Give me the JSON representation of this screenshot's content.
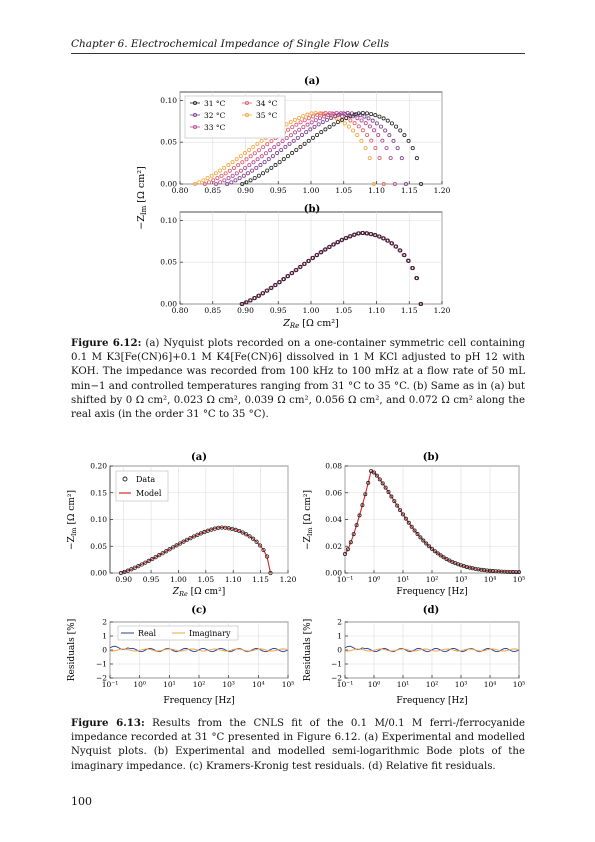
{
  "header": "Chapter 6.  Electrochemical Impedance of Single Flow Cells",
  "fig612": {
    "caption_label": "Figure 6.12:",
    "caption_text": "(a) Nyquist plots recorded on a one-container symmetric cell containing 0.1 M K3[Fe(CN)6]+0.1 M K4[Fe(CN)6] dissolved in 1 M KCl adjusted to pH 12 with KOH. The impedance was recorded from 100 kHz to 100 mHz at a flow rate of 50 mL min−1 and controlled temperatures ranging from 31 °C to 35 °C. (b) Same as in (a) but shifted by 0 Ω cm², 0.023 Ω cm², 0.039 Ω cm², 0.056 Ω cm², and 0.072 Ω cm² along the real axis (in the order 31 °C to 35 °C)."
  },
  "fig613": {
    "caption_label": "Figure 6.13:",
    "caption_text": "Results from the CNLS fit of the 0.1 M/0.1 M ferri-/ferrocyanide impedance recorded at 31 °C presented in Figure 6.12. (a) Experimental and modelled Nyquist plots. (b) Experimental and modelled semi-logarithmic Bode plots of the imaginary impedance. (c) Kramers-Kronig test residuals. (d) Relative fit residuals."
  },
  "page_number": "100",
  "chart_data": [
    {
      "panel": "6.12 (a)",
      "type": "scatter",
      "xlabel": "",
      "ylabel": "−Z_Im [Ω cm²]",
      "xlim": [
        0.8,
        1.2
      ],
      "ylim": [
        0.0,
        0.11
      ],
      "xticks": [
        "0.80",
        "0.85",
        "0.90",
        "0.95",
        "1.00",
        "1.05",
        "1.10",
        "1.15",
        "1.20"
      ],
      "yticks": [
        "0.00",
        "0.05",
        "0.10"
      ],
      "series": [
        {
          "name": "31 °C",
          "color": "#222222",
          "start": 0.895,
          "end": 1.168,
          "peak_x": 1.075,
          "peak_y": 0.085
        },
        {
          "name": "32 °C",
          "color": "#7a3b8f",
          "start": 0.872,
          "end": 1.145,
          "peak_x": 1.052,
          "peak_y": 0.085
        },
        {
          "name": "33 °C",
          "color": "#b5478f",
          "start": 0.855,
          "end": 1.128,
          "peak_x": 1.036,
          "peak_y": 0.085
        },
        {
          "name": "34 °C",
          "color": "#e05a6a",
          "start": 0.838,
          "end": 1.111,
          "peak_x": 1.019,
          "peak_y": 0.085
        },
        {
          "name": "35 °C",
          "color": "#f4a23b",
          "start": 0.823,
          "end": 1.096,
          "peak_x": 1.003,
          "peak_y": 0.085
        }
      ]
    },
    {
      "panel": "6.12 (b)",
      "type": "scatter",
      "xlabel": "Z_Re [Ω cm²]",
      "ylabel": "−Z_Im [Ω cm²]",
      "xlim": [
        0.8,
        1.2
      ],
      "ylim": [
        0.0,
        0.11
      ],
      "xticks": [
        "0.80",
        "0.85",
        "0.90",
        "0.95",
        "1.00",
        "1.05",
        "1.10",
        "1.15",
        "1.20"
      ],
      "yticks": [
        "0.00",
        "0.05",
        "0.10"
      ]
    },
    {
      "panel": "6.13 (a)",
      "type": "scatter",
      "xlabel": "Z_Re [Ω cm²]",
      "ylabel": "−Z_Im [Ω cm²]",
      "xlim": [
        0.875,
        1.2
      ],
      "ylim": [
        0.0,
        0.2
      ],
      "xticks": [
        "0.90",
        "0.95",
        "1.00",
        "1.05",
        "1.10",
        "1.15",
        "1.20"
      ],
      "yticks": [
        "0.00",
        "0.05",
        "0.10",
        "0.15",
        "0.20"
      ],
      "series": [
        {
          "name": "Data"
        },
        {
          "name": "Model"
        }
      ],
      "start": 0.895,
      "end": 1.168,
      "peak_x": 1.075,
      "peak_y": 0.085
    },
    {
      "panel": "6.13 (b)",
      "type": "line",
      "xlabel": "Frequency [Hz]",
      "ylabel": "−Z_Im [Ω cm²]",
      "xlim_log10": [
        -1,
        5
      ],
      "ylim": [
        0.0,
        0.09
      ],
      "xticks": [
        "10⁻¹",
        "10⁰",
        "10¹",
        "10²",
        "10³",
        "10⁴",
        "10⁵"
      ],
      "yticks": [
        "0.00",
        "0.02",
        "0.04",
        "0.06",
        "0.08"
      ],
      "peak_f": 0.8,
      "peak_y": 0.086,
      "low_f_y": 0.016
    },
    {
      "panel": "6.13 (c)",
      "type": "line",
      "xlabel": "Frequency [Hz]",
      "ylabel": "Residuals [%]",
      "xlim_log10": [
        -1,
        5
      ],
      "ylim": [
        -2,
        2
      ],
      "xticks": [
        "10⁻¹",
        "10⁰",
        "10¹",
        "10²",
        "10³",
        "10⁴",
        "10⁵"
      ],
      "yticks": [
        "−2",
        "−1",
        "0",
        "1",
        "2"
      ],
      "series": [
        {
          "name": "Real",
          "color": "#2a3f9e"
        },
        {
          "name": "Imaginary",
          "color": "#f4a23b"
        }
      ]
    },
    {
      "panel": "6.13 (d)",
      "type": "line",
      "xlabel": "Frequency [Hz]",
      "ylabel": "Residuals [%]",
      "xlim_log10": [
        -1,
        5
      ],
      "ylim": [
        -2,
        2
      ],
      "xticks": [
        "10⁻¹",
        "10⁰",
        "10¹",
        "10²",
        "10³",
        "10⁴",
        "10⁵"
      ],
      "yticks": [
        "−2",
        "−1",
        "0",
        "1",
        "2"
      ]
    }
  ],
  "panel_labels": {
    "a612": "(a)",
    "b612": "(b)",
    "a613": "(a)",
    "b613": "(b)",
    "c613": "(c)",
    "d613": "(d)"
  },
  "legend_data": "Data",
  "legend_model": "Model",
  "legend_real": "Real",
  "legend_imag": "Imaginary"
}
